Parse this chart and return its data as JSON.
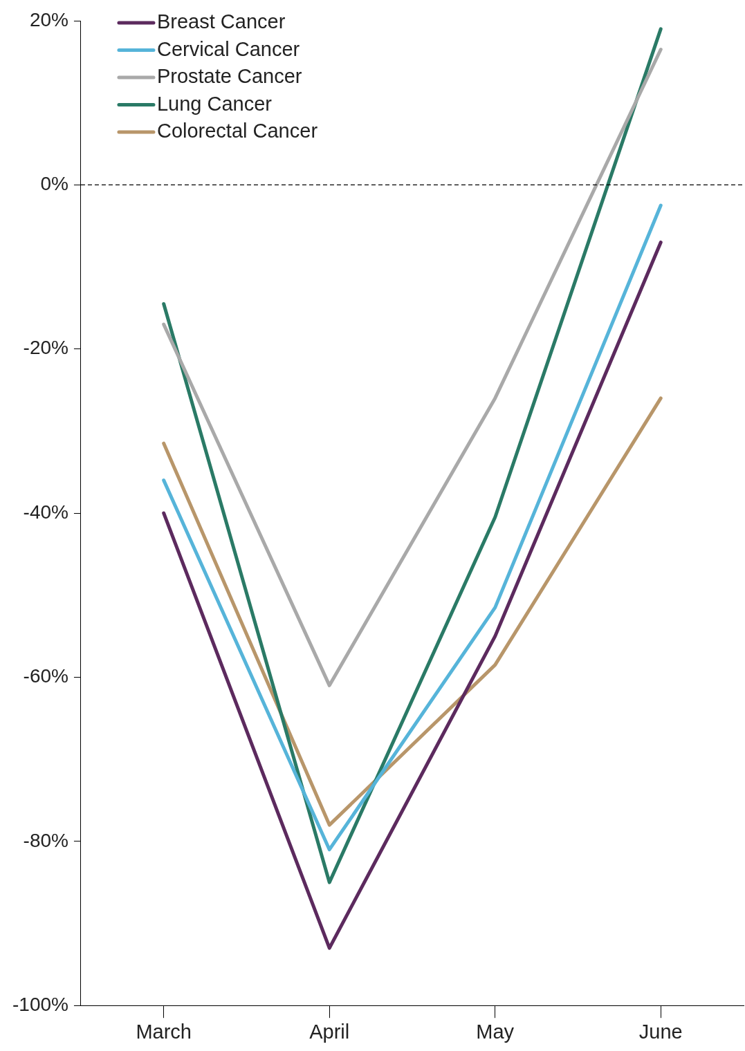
{
  "chart_data": {
    "type": "line",
    "categories": [
      "March",
      "April",
      "May",
      "June"
    ],
    "series": [
      {
        "name": "Breast Cancer",
        "color": "#5c2a5e",
        "values": [
          -40,
          -93,
          -55,
          -7
        ]
      },
      {
        "name": "Cervical Cancer",
        "color": "#56b4d9",
        "values": [
          -36,
          -81,
          -51.5,
          -2.5
        ]
      },
      {
        "name": "Prostate Cancer",
        "color": "#a9a9a9",
        "values": [
          -17,
          -61,
          -26,
          16.5
        ]
      },
      {
        "name": "Lung Cancer",
        "color": "#2a7a66",
        "values": [
          -14.5,
          -85,
          -40.5,
          19
        ]
      },
      {
        "name": "Colorectal Cancer",
        "color": "#b8966a",
        "values": [
          -31.5,
          -78,
          -58.5,
          -26
        ]
      }
    ],
    "ylim": [
      -100,
      20
    ],
    "yticks": [
      {
        "value": 20,
        "label": "20%"
      },
      {
        "value": 0,
        "label": "0%"
      },
      {
        "value": -20,
        "label": "-20%"
      },
      {
        "value": -40,
        "label": "-40%"
      },
      {
        "value": -60,
        "label": "-60%"
      },
      {
        "value": -80,
        "label": "-80%"
      },
      {
        "value": -100,
        "label": "-100%"
      }
    ],
    "ref_lines": [
      {
        "axis": "y",
        "value": 0,
        "color": "#000000",
        "line_style": "dashed"
      }
    ],
    "grid": false,
    "legend": "top left",
    "marker": "none",
    "line_style": "solid"
  }
}
